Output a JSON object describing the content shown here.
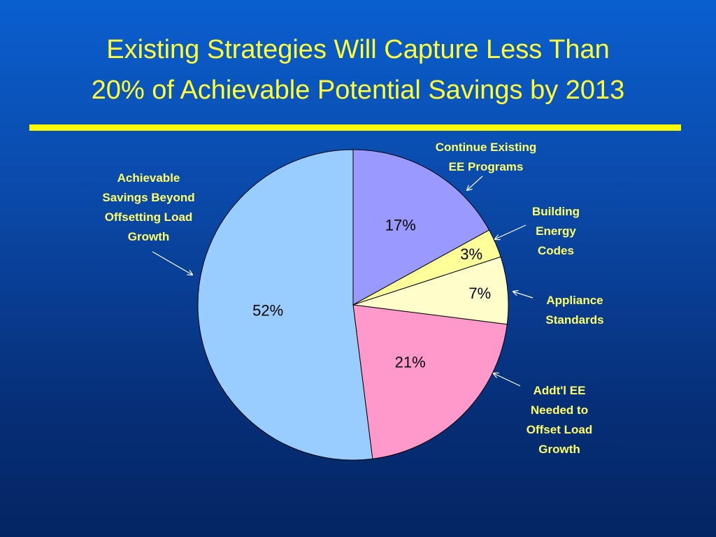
{
  "slide": {
    "title_line1": "Existing Strategies Will Capture Less Than",
    "title_line2": "20% of Achievable Potential Savings by 2013"
  },
  "colors": {
    "background_top": "#0a5fcf",
    "background_bottom": "#042563",
    "title": "#ffff33",
    "rule": "#ffff00",
    "labels": "#ffff66"
  },
  "chart_data": {
    "type": "pie",
    "title": "Existing Strategies Will Capture Less Than 20% of Achievable Potential Savings by 2013",
    "slices": [
      {
        "label": "Continue Existing EE Programs",
        "label_lines": [
          "Continue Existing",
          "EE Programs"
        ],
        "value": 17,
        "display": "17%",
        "color": "#9999ff"
      },
      {
        "label": "Building Energy Codes",
        "label_lines": [
          "Building",
          "Energy",
          "Codes"
        ],
        "value": 3,
        "display": "3%",
        "color": "#ffff99"
      },
      {
        "label": "Appliance Standards",
        "label_lines": [
          "Appliance",
          "Standards"
        ],
        "value": 7,
        "display": "7%",
        "color": "#ffffcc"
      },
      {
        "label": "Addt'l EE Needed to Offset Load Growth",
        "label_lines": [
          "Addt'l EE",
          "Needed to",
          "Offset Load",
          "Growth"
        ],
        "value": 21,
        "display": "21%",
        "color": "#ff99cc"
      },
      {
        "label": "Achievable Savings Beyond Offsetting Load Growth",
        "label_lines": [
          "Achievable",
          "Savings Beyond",
          "Offsetting Load",
          "Growth"
        ],
        "value": 52,
        "display": "52%",
        "color": "#99ccff"
      }
    ],
    "legend": "callout labels"
  }
}
